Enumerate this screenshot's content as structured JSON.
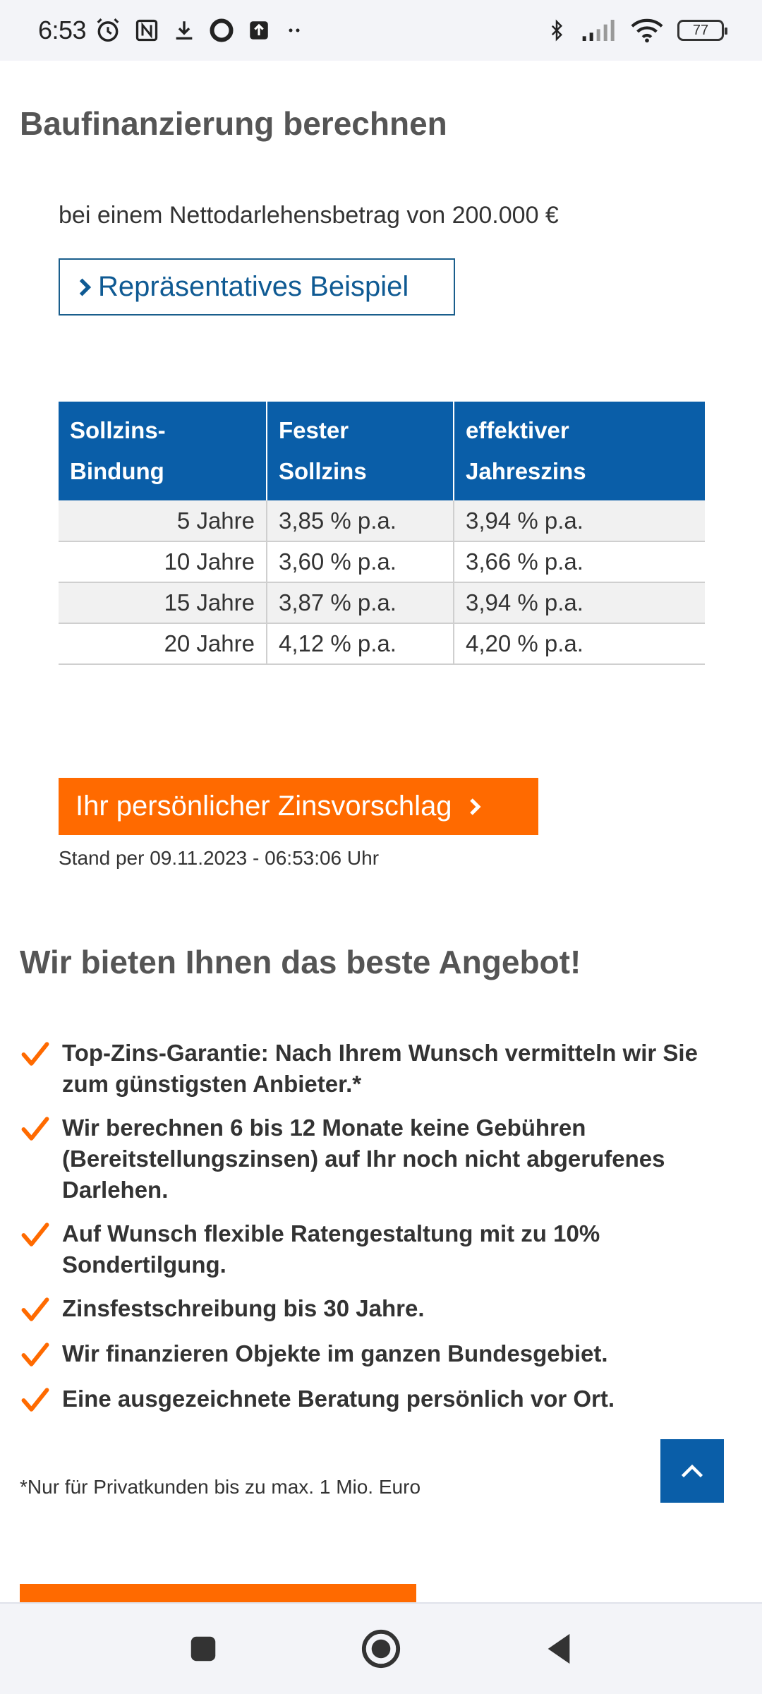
{
  "status_bar": {
    "time": "6:53",
    "battery": "77",
    "icons": [
      "alarm-icon",
      "nfc-icon",
      "download-icon",
      "circle-icon",
      "upload-icon",
      "more-dots-icon",
      "bluetooth-icon",
      "signal-icon",
      "wifi-icon",
      "battery-icon"
    ]
  },
  "page": {
    "title": "Baufinanzierung berechnen",
    "subtitle": "bei einem Nettodarlehensbetrag von 200.000 €",
    "example_link": "Repräsentatives Beispiel"
  },
  "rates_table": {
    "headers": [
      "Sollzins- Bindung",
      "Fester Sollzins",
      "effektiver Jahreszins"
    ],
    "header_lines": [
      [
        "Sollzins-",
        "Bindung"
      ],
      [
        "Fester",
        "Sollzins"
      ],
      [
        "effektiver",
        "Jahreszins"
      ]
    ],
    "rows": [
      {
        "term": "5 Jahre",
        "fixed": "3,85 % p.a.",
        "effective": "3,94 % p.a."
      },
      {
        "term": "10 Jahre",
        "fixed": "3,60 % p.a.",
        "effective": "3,66 % p.a."
      },
      {
        "term": "15 Jahre",
        "fixed": "3,87 % p.a.",
        "effective": "3,94 % p.a."
      },
      {
        "term": "20 Jahre",
        "fixed": "4,12 % p.a.",
        "effective": "4,20 % p.a."
      }
    ]
  },
  "cta": {
    "label": "Ihr persönlicher Zinsvorschlag",
    "stand": "Stand per 09.11.2023 - 06:53:06 Uhr"
  },
  "offer": {
    "title": "Wir bieten Ihnen das beste Angebot!",
    "benefits": [
      "Top-Zins-Garantie: Nach Ihrem Wunsch vermitteln wir Sie zum günstigsten Anbieter.*",
      "Wir berechnen 6 bis 12 Monate keine Gebühren (Bereitstellungszinsen) auf Ihr noch nicht abgerufenes Darlehen.",
      "Auf Wunsch flexible Ratengestaltung mit zu 10% Sondertilgung.",
      "Zinsfestschreibung bis 30 Jahre.",
      "Wir finanzieren Objekte im ganzen Bundesgebiet.",
      "Eine ausgezeichnete Beratung persönlich vor Ort."
    ],
    "footnote": "*Nur für Privatkunden bis zu max. 1 Mio. Euro"
  },
  "colors": {
    "brand_blue": "#0a5ea8",
    "accent_orange": "#ff6a00",
    "link_blue": "#0f5a93"
  }
}
